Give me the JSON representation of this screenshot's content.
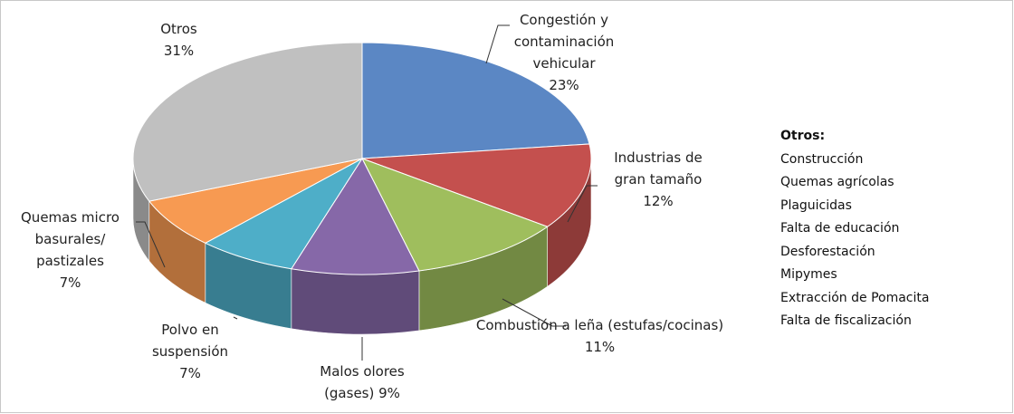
{
  "chart_data": {
    "type": "pie3d",
    "categories": [
      "Congestión y contaminación vehicular",
      "Industrias de gran tamaño",
      "Combustión a leña (estufas/cocinas)",
      "Malos olores (gases)",
      "Polvo en suspensión",
      "Quemas micro basurales/ pastizales",
      "Otros"
    ],
    "values": [
      23,
      12,
      11,
      9,
      7,
      7,
      31
    ],
    "value_labels": [
      "23%",
      "12%",
      "11%",
      "9%",
      "7%",
      "7%",
      "31%"
    ],
    "colors": [
      "#5b87c4",
      "#c4504e",
      "#9fbe5d",
      "#8668a8",
      "#4eaec8",
      "#f79a52",
      "#c0c0c0"
    ],
    "note": {
      "title": "Otros:",
      "items": [
        "Construcción",
        "Quemas agrícolas",
        "Plaguicidas",
        "Falta de educación",
        "Desforestación",
        "Mipymes",
        "Extracción de Pomacita",
        "Falta de fiscalización"
      ]
    }
  }
}
